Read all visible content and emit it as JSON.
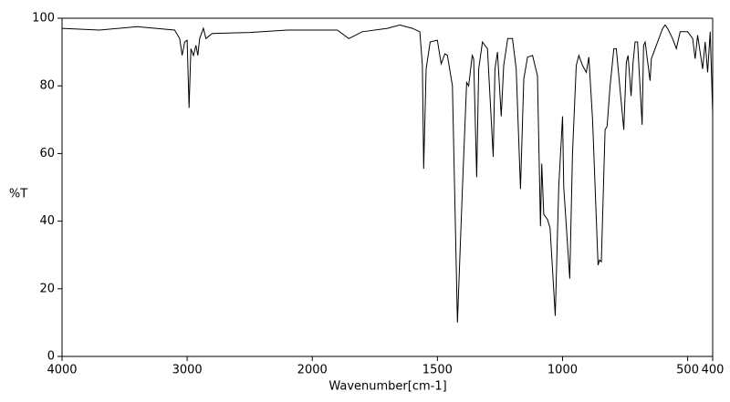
{
  "chart_data": {
    "type": "line",
    "xlabel": "Wavenumber[cm-1]",
    "ylabel": "%T",
    "xlim": [
      4000,
      400
    ],
    "ylim": [
      0,
      100
    ],
    "x_break": 2000,
    "x_break_factor": 2,
    "xticks": [
      4000,
      3000,
      2000,
      1500,
      1000,
      500,
      400
    ],
    "yticks": [
      0,
      20,
      40,
      60,
      80,
      100
    ],
    "x": [
      4000,
      3700,
      3400,
      3100,
      3060,
      3040,
      3020,
      3000,
      2985,
      2970,
      2950,
      2930,
      2915,
      2900,
      2870,
      2850,
      2800,
      2500,
      2200,
      1900,
      1854,
      1800,
      1700,
      1650,
      1600,
      1570,
      1560,
      1555,
      1545,
      1529,
      1500,
      1485,
      1470,
      1460,
      1440,
      1420,
      1400,
      1383,
      1375,
      1361,
      1355,
      1343,
      1335,
      1320,
      1300,
      1277,
      1270,
      1260,
      1245,
      1235,
      1219,
      1200,
      1185,
      1168,
      1155,
      1140,
      1120,
      1100,
      1088,
      1083,
      1075,
      1060,
      1050,
      1029,
      1015,
      1000,
      995,
      971,
      960,
      945,
      935,
      920,
      905,
      895,
      880,
      858,
      852,
      845,
      830,
      822,
      810,
      795,
      785,
      755,
      745,
      738,
      726,
      718,
      710,
      700,
      682,
      676,
      670,
      650,
      645,
      640,
      625,
      600,
      590,
      580,
      560,
      545,
      530,
      500,
      480,
      470,
      460,
      440,
      430,
      420,
      410,
      400
    ],
    "series": [
      {
        "color": "#000000",
        "values": [
          97,
          96.5,
          97.5,
          96.5,
          94,
          89,
          93,
          93.5,
          73.5,
          91,
          89,
          92,
          89,
          94,
          97,
          94,
          95.5,
          95.8,
          96.5,
          96.5,
          94,
          96,
          97,
          98,
          97,
          96,
          86,
          55.5,
          85,
          93,
          93.5,
          86.5,
          89.5,
          89,
          80,
          10,
          50,
          81,
          80,
          89,
          88,
          53,
          85,
          93,
          91,
          59,
          85,
          90,
          71,
          86,
          94,
          94,
          85,
          49.5,
          82,
          88.5,
          89,
          83,
          38.5,
          57,
          42,
          40.5,
          38,
          12,
          50,
          71,
          50,
          23,
          60,
          86,
          89,
          86,
          84,
          88.5,
          70,
          27,
          28.5,
          28,
          67,
          68,
          80,
          91,
          91,
          67,
          87,
          89,
          77,
          87,
          93,
          93,
          68.5,
          92,
          93,
          81.5,
          88,
          89,
          92,
          97,
          98,
          97,
          94,
          91,
          96,
          96,
          94,
          88,
          95,
          85,
          93,
          84,
          96,
          72
        ]
      }
    ]
  }
}
